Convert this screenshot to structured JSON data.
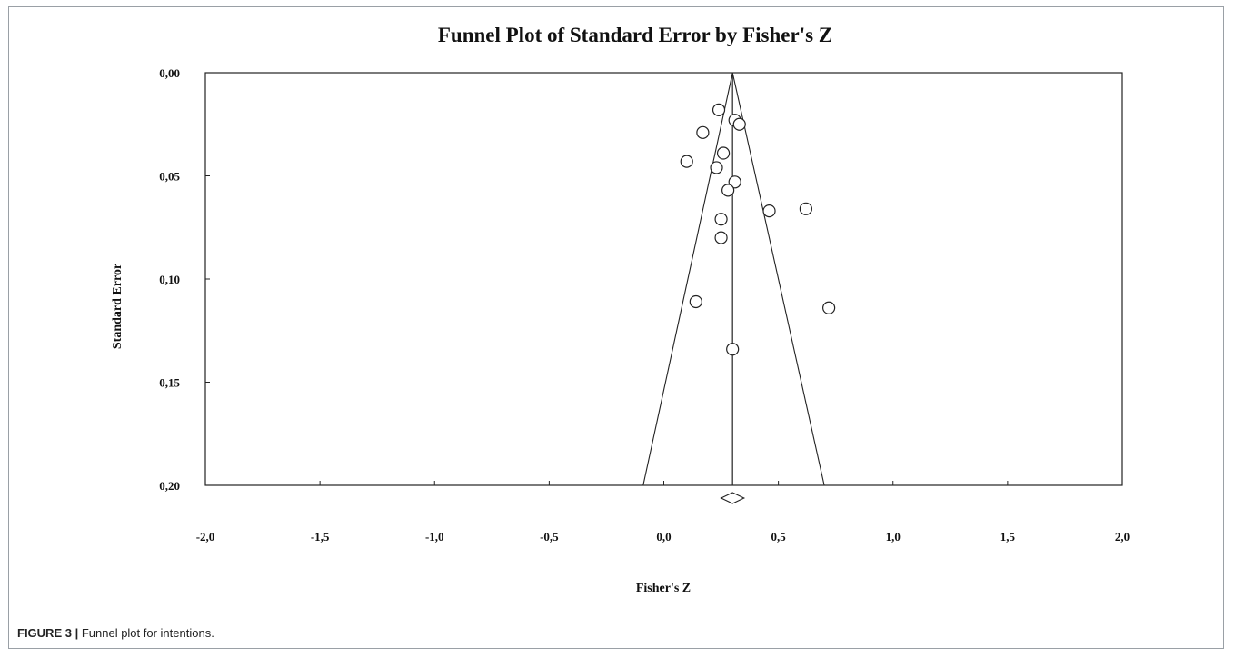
{
  "caption": {
    "label": "FIGURE 3 |",
    "text": "Funnel plot for intentions."
  },
  "chart_data": {
    "type": "scatter",
    "title": "Funnel Plot of Standard Error by Fisher's Z",
    "xlabel": "Fisher's Z",
    "ylabel": "Standard Error",
    "xlim": [
      -2.0,
      2.0
    ],
    "ylim": [
      0.0,
      0.2
    ],
    "y_inverted": true,
    "xticks": [
      -2.0,
      -1.5,
      -1.0,
      -0.5,
      0.0,
      0.5,
      1.0,
      1.5,
      2.0
    ],
    "xtick_labels": [
      "-2,0",
      "-1,5",
      "-1,0",
      "-0,5",
      "0,0",
      "0,5",
      "1,0",
      "1,5",
      "2,0"
    ],
    "yticks": [
      0.0,
      0.05,
      0.1,
      0.15,
      0.2
    ],
    "ytick_labels": [
      "0,00",
      "0,05",
      "0,10",
      "0,15",
      "0,20"
    ],
    "grid": false,
    "pooled_estimate": 0.3,
    "funnel_bottom": [
      -0.09,
      0.7
    ],
    "diamond": {
      "center": 0.3,
      "half_width": 0.05
    },
    "points": [
      {
        "x": 0.24,
        "y": 0.018
      },
      {
        "x": 0.31,
        "y": 0.023
      },
      {
        "x": 0.33,
        "y": 0.025
      },
      {
        "x": 0.17,
        "y": 0.029
      },
      {
        "x": 0.26,
        "y": 0.039
      },
      {
        "x": 0.1,
        "y": 0.043
      },
      {
        "x": 0.23,
        "y": 0.046
      },
      {
        "x": 0.31,
        "y": 0.053
      },
      {
        "x": 0.28,
        "y": 0.057
      },
      {
        "x": 0.46,
        "y": 0.067
      },
      {
        "x": 0.62,
        "y": 0.066
      },
      {
        "x": 0.25,
        "y": 0.071
      },
      {
        "x": 0.25,
        "y": 0.08
      },
      {
        "x": 0.14,
        "y": 0.111
      },
      {
        "x": 0.72,
        "y": 0.114
      },
      {
        "x": 0.3,
        "y": 0.134
      }
    ]
  }
}
